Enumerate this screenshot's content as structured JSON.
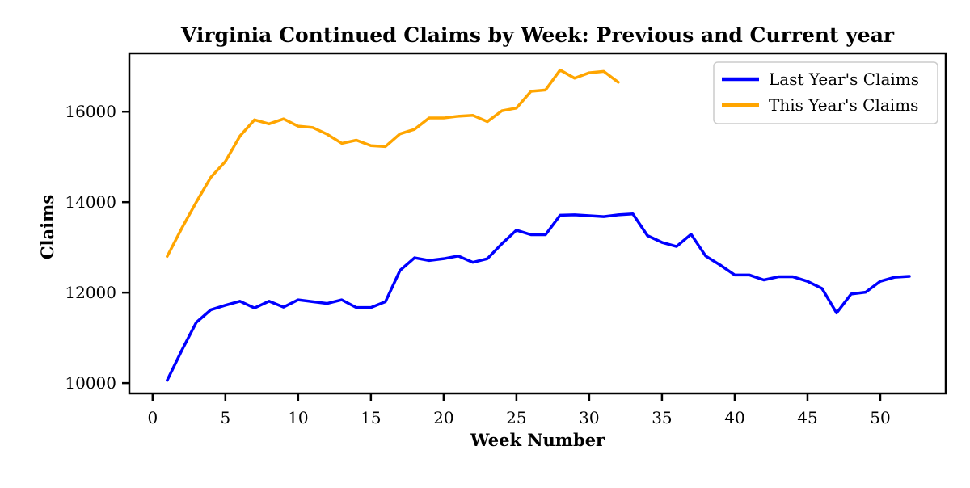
{
  "figure": {
    "background": "#ffffff",
    "spine_color": "#000000"
  },
  "chart_data": {
    "type": "line",
    "title": "Virginia Continued Claims by Week: Previous and Current year",
    "xlabel": "Week Number",
    "ylabel": "Claims",
    "grid": false,
    "legend_position": "upper right",
    "xlim": [
      -1.6,
      54.5
    ],
    "ylim": [
      9770,
      17290
    ],
    "xticks": [
      0,
      5,
      10,
      15,
      20,
      25,
      30,
      35,
      40,
      45,
      50
    ],
    "yticks": [
      10000,
      12000,
      14000,
      16000
    ],
    "x_start_week": 1,
    "series": [
      {
        "name": "Last Year's Claims",
        "color": "#0000ff",
        "weeks": [
          1,
          2,
          3,
          4,
          5,
          6,
          7,
          8,
          9,
          10,
          11,
          12,
          13,
          14,
          15,
          16,
          17,
          18,
          19,
          20,
          21,
          22,
          23,
          24,
          25,
          26,
          27,
          28,
          29,
          30,
          31,
          32,
          33,
          34,
          35,
          36,
          37,
          38,
          39,
          40,
          41,
          42,
          43,
          44,
          45,
          46,
          47,
          48,
          49,
          50,
          51,
          52
        ],
        "values": [
          10060,
          10720,
          11340,
          11620,
          11720,
          11810,
          11660,
          11810,
          11680,
          11840,
          11800,
          11760,
          11840,
          11670,
          11670,
          11800,
          12490,
          12770,
          12710,
          12750,
          12810,
          12670,
          12750,
          13080,
          13380,
          13280,
          13280,
          13710,
          13720,
          13700,
          13680,
          13720,
          13740,
          13260,
          13110,
          13020,
          13290,
          12810,
          12610,
          12390,
          12390,
          12280,
          12350,
          12350,
          12250,
          12090,
          11550,
          11970,
          12010,
          12250,
          12340,
          12360
        ]
      },
      {
        "name": "This Year's Claims",
        "color": "#ffa500",
        "weeks": [
          1,
          2,
          3,
          4,
          5,
          6,
          7,
          8,
          9,
          10,
          11,
          12,
          13,
          14,
          15,
          16,
          17,
          18,
          19,
          20,
          21,
          22,
          23,
          24,
          25,
          26,
          27,
          28,
          29,
          30,
          31,
          32
        ],
        "values": [
          12800,
          13420,
          14000,
          14550,
          14900,
          15460,
          15820,
          15730,
          15840,
          15680,
          15650,
          15500,
          15300,
          15370,
          15250,
          15230,
          15510,
          15610,
          15860,
          15860,
          15900,
          15920,
          15780,
          16020,
          16080,
          16450,
          16480,
          16920,
          16740,
          16860,
          16890,
          16650
        ]
      }
    ]
  }
}
